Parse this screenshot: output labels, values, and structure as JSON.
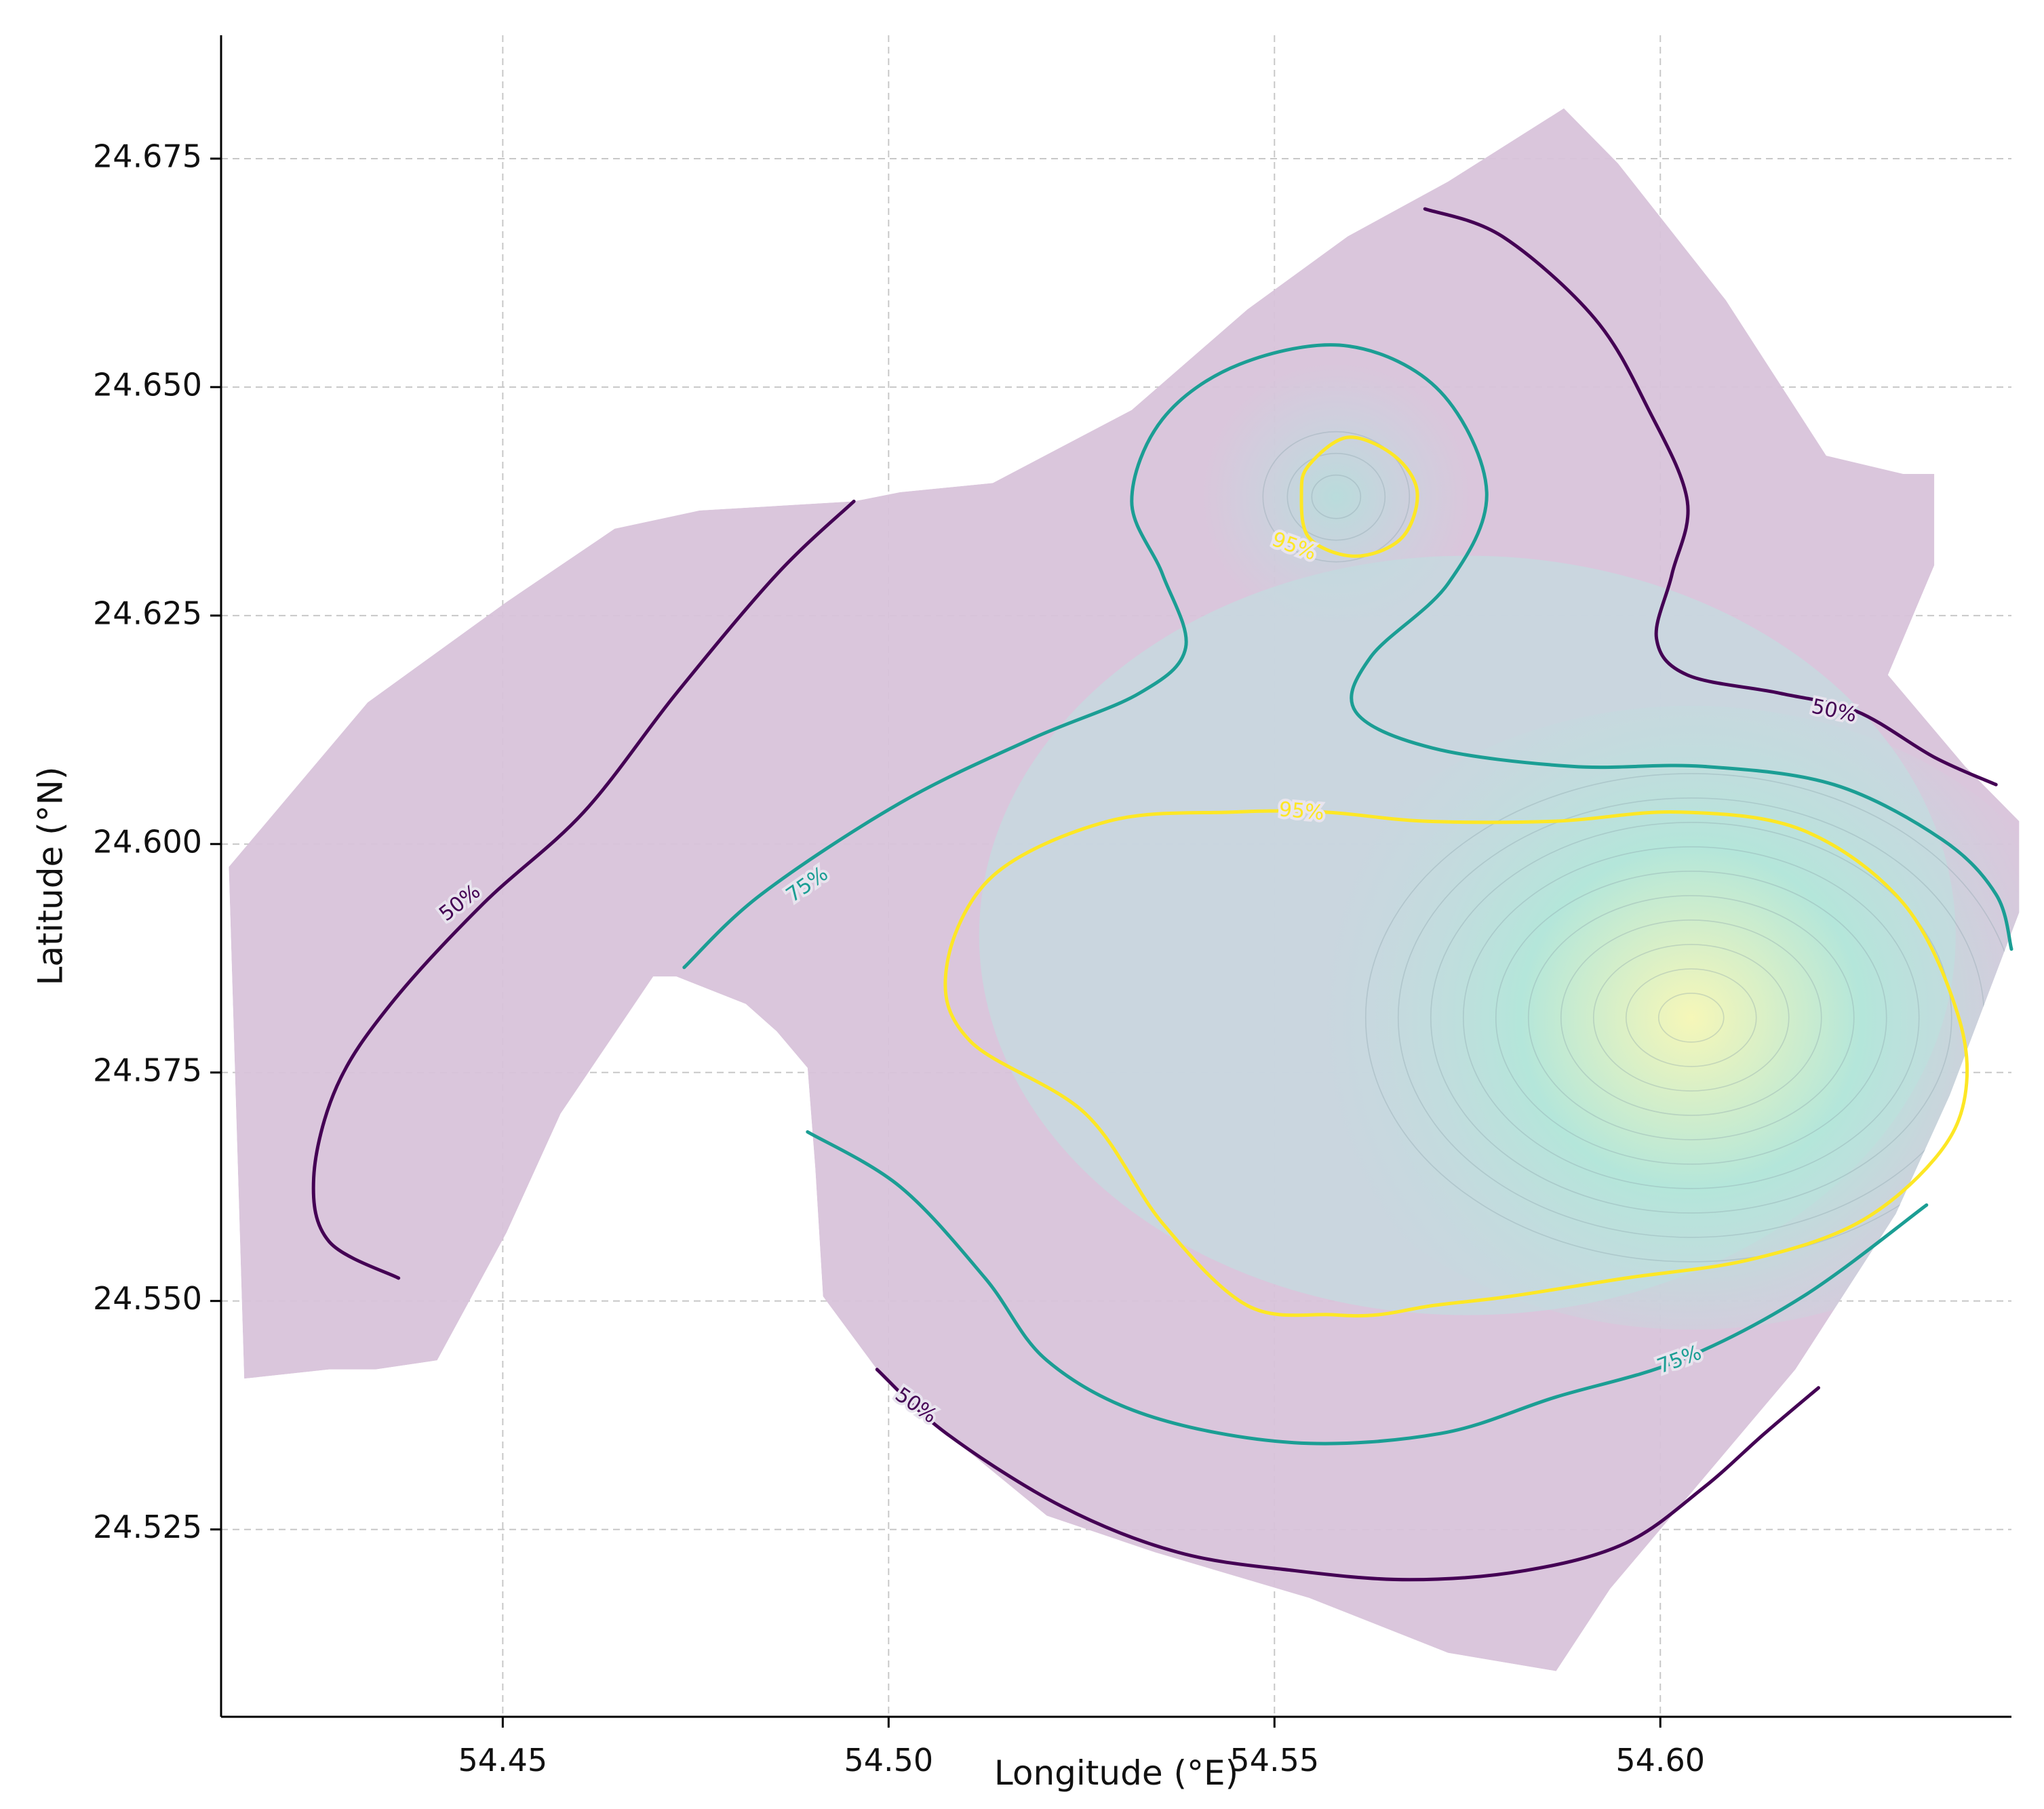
{
  "chart_data": {
    "type": "contour",
    "title": "",
    "xlabel": "Longitude (°E)",
    "ylabel": "Latitude (°N)",
    "xlim": [
      54.4135,
      54.6455
    ],
    "ylim": [
      24.5045,
      24.6885
    ],
    "xticks": [
      54.45,
      54.5,
      54.55,
      54.6
    ],
    "xtick_labels": [
      "54.45",
      "54.50",
      "54.55",
      "54.60"
    ],
    "yticks": [
      24.525,
      24.55,
      24.575,
      24.6,
      24.625,
      24.65,
      24.675
    ],
    "ytick_labels": [
      "24.525",
      "24.550",
      "24.575",
      "24.600",
      "24.625",
      "24.650",
      "24.675"
    ],
    "grid": true,
    "peaks": [
      {
        "lon": 54.604,
        "lat": 24.581,
        "relative_density": 1.0
      },
      {
        "lon": 54.558,
        "lat": 24.638,
        "relative_density": 0.5
      }
    ],
    "colors": {
      "fill_low": "#d8c3da",
      "fill_mid": "#c4dbe0",
      "fill_high": "#f6f7b8",
      "level_50": "#440154",
      "level_75": "#1b9e94",
      "level_95": "#fde725",
      "grid": "#c8c8c8",
      "axis": "#000000"
    },
    "contour_levels": [
      {
        "level": "50%",
        "label": "50%",
        "color": "#440154",
        "label_positions": [
          {
            "lon": 54.4445,
            "lat": 24.5935,
            "angle": -38
          },
          {
            "lon": 54.6225,
            "lat": 24.6145,
            "angle": 12
          },
          {
            "lon": 54.5035,
            "lat": 24.5385,
            "angle": 35
          }
        ],
        "paths": [
          [
            [
              54.4955,
              24.6375
            ],
            [
              54.4855,
              24.6295
            ],
            [
              54.4725,
              24.6165
            ],
            [
              54.4605,
              24.6035
            ],
            [
              54.4475,
              24.5935
            ],
            [
              54.4355,
              24.5825
            ],
            [
              54.4285,
              24.5735
            ],
            [
              54.4255,
              24.5635
            ],
            [
              54.4275,
              24.5565
            ],
            [
              54.4365,
              24.5525
            ]
          ],
          [
            [
              54.5695,
              24.6695
            ],
            [
              54.5795,
              24.6665
            ],
            [
              54.5915,
              24.6575
            ],
            [
              54.5985,
              24.6475
            ],
            [
              54.6035,
              24.6375
            ],
            [
              54.6015,
              24.6295
            ],
            [
              54.5995,
              24.6225
            ],
            [
              54.6035,
              24.6185
            ],
            [
              54.6155,
              24.6165
            ],
            [
              54.6255,
              24.6145
            ],
            [
              54.6355,
              24.6095
            ],
            [
              54.6435,
              24.6065
            ]
          ],
          [
            [
              54.4985,
              24.5425
            ],
            [
              54.5075,
              24.5355
            ],
            [
              54.5225,
              24.5275
            ],
            [
              54.5375,
              24.5225
            ],
            [
              54.5525,
              24.5205
            ],
            [
              54.5675,
              24.5195
            ],
            [
              54.5825,
              24.5205
            ],
            [
              54.5955,
              24.5235
            ],
            [
              54.6055,
              24.5295
            ],
            [
              54.6135,
              24.5355
            ],
            [
              54.6205,
              24.5405
            ]
          ]
        ]
      },
      {
        "level": "75%",
        "label": "75%",
        "color": "#1b9e94",
        "label_positions": [
          {
            "lon": 54.4895,
            "lat": 24.5955,
            "angle": -35
          },
          {
            "lon": 54.6025,
            "lat": 24.5435,
            "angle": -20
          }
        ],
        "paths": [
          [
            [
              54.4735,
              24.5865
            ],
            [
              54.4835,
              24.5945
            ],
            [
              54.5015,
              24.6045
            ],
            [
              54.5185,
              24.6115
            ],
            [
              54.5325,
              24.6165
            ],
            [
              54.5385,
              24.6215
            ],
            [
              54.5355,
              24.6295
            ],
            [
              54.5315,
              24.6375
            ],
            [
              54.5355,
              24.6465
            ],
            [
              54.5455,
              24.6525
            ],
            [
              54.5595,
              24.6545
            ],
            [
              54.5715,
              24.6495
            ],
            [
              54.5775,
              24.6385
            ],
            [
              54.5725,
              24.6285
            ],
            [
              54.5625,
              24.6205
            ],
            [
              54.5605,
              24.6145
            ],
            [
              54.5705,
              24.6105
            ],
            [
              54.5885,
              24.6085
            ],
            [
              54.6055,
              24.6085
            ],
            [
              54.6225,
              24.6065
            ],
            [
              54.6365,
              24.6005
            ],
            [
              54.6435,
              24.5945
            ],
            [
              54.6455,
              24.5885
            ]
          ],
          [
            [
              54.4895,
              24.5685
            ],
            [
              54.5015,
              24.5625
            ],
            [
              54.5125,
              24.5525
            ],
            [
              54.5205,
              24.5435
            ],
            [
              54.5335,
              24.5375
            ],
            [
              54.5525,
              24.5345
            ],
            [
              54.5715,
              24.5355
            ],
            [
              54.5865,
              24.5395
            ],
            [
              54.6025,
              24.5435
            ],
            [
              54.6185,
              24.5505
            ],
            [
              54.6345,
              24.5605
            ]
          ]
        ]
      },
      {
        "level": "95%",
        "label": "95%",
        "color": "#fde725",
        "label_positions": [
          {
            "lon": 54.5525,
            "lat": 24.6325,
            "angle": 20
          },
          {
            "lon": 54.5535,
            "lat": 24.6035,
            "angle": 5
          }
        ],
        "paths": [
          [
            [
              54.5535,
              24.6385
            ],
            [
              54.5545,
              24.6415
            ],
            [
              54.5595,
              24.6445
            ],
            [
              54.5655,
              24.6425
            ],
            [
              54.5685,
              24.6385
            ],
            [
              54.5665,
              24.6335
            ],
            [
              54.5605,
              24.6315
            ],
            [
              54.5545,
              24.6335
            ],
            [
              54.5535,
              24.6385
            ]
          ],
          [
            [
              54.5575,
              24.5485
            ],
            [
              54.5465,
              24.5495
            ],
            [
              54.5355,
              24.5585
            ],
            [
              54.5255,
              24.5705
            ],
            [
              54.5105,
              24.5785
            ],
            [
              54.5075,
              24.5865
            ],
            [
              54.5135,
              24.5965
            ],
            [
              54.5285,
              24.6025
            ],
            [
              54.5445,
              24.6035
            ],
            [
              54.5565,
              24.6035
            ],
            [
              54.5695,
              24.6025
            ],
            [
              54.5865,
              24.6025
            ],
            [
              54.6025,
              24.6035
            ],
            [
              54.6185,
              24.6015
            ],
            [
              54.6315,
              24.5935
            ],
            [
              54.6385,
              24.5815
            ],
            [
              54.6395,
              24.5725
            ],
            [
              54.6355,
              24.5655
            ],
            [
              54.6255,
              24.5585
            ],
            [
              54.6115,
              24.5545
            ],
            [
              54.5955,
              24.5525
            ],
            [
              54.5805,
              24.5505
            ],
            [
              54.5705,
              24.5495
            ],
            [
              54.5635,
              24.5485
            ],
            [
              54.5575,
              24.5485
            ]
          ]
        ]
      }
    ],
    "domain_polygon": [
      [
        54.4145,
        24.5975
      ],
      [
        54.4325,
        24.6155
      ],
      [
        54.4505,
        24.6265
      ],
      [
        54.4645,
        24.6345
      ],
      [
        54.4755,
        24.6365
      ],
      [
        54.4955,
        24.6375
      ],
      [
        54.5015,
        24.6385
      ],
      [
        54.5135,
        24.6395
      ],
      [
        54.5315,
        24.6475
      ],
      [
        54.5465,
        24.6585
      ],
      [
        54.5595,
        24.6665
      ],
      [
        54.5725,
        24.6725
      ],
      [
        54.5875,
        24.6805
      ],
      [
        54.5945,
        24.6745
      ],
      [
        54.6085,
        24.6595
      ],
      [
        54.6215,
        24.6425
      ],
      [
        54.6315,
        24.6405
      ],
      [
        54.6355,
        24.6405
      ],
      [
        54.6355,
        24.6305
      ],
      [
        54.6295,
        24.6185
      ],
      [
        54.6395,
        24.6085
      ],
      [
        54.6465,
        24.6025
      ],
      [
        54.6465,
        24.5925
      ],
      [
        54.6375,
        24.5725
      ],
      [
        54.6305,
        24.5595
      ],
      [
        54.6175,
        24.5425
      ],
      [
        54.6035,
        24.5285
      ],
      [
        54.5935,
        24.5185
      ],
      [
        54.5865,
        24.5095
      ],
      [
        54.5725,
        24.5115
      ],
      [
        54.5545,
        24.5175
      ],
      [
        54.5345,
        24.5225
      ],
      [
        54.5205,
        24.5265
      ],
      [
        54.5075,
        24.5355
      ],
      [
        54.4985,
        24.5425
      ],
      [
        54.4915,
        24.5505
      ],
      [
        54.4905,
        24.5645
      ],
      [
        54.4895,
        24.5755
      ],
      [
        54.4855,
        24.5795
      ],
      [
        54.4815,
        24.5825
      ],
      [
        54.4725,
        24.5855
      ],
      [
        54.4695,
        24.5855
      ],
      [
        54.4575,
        24.5705
      ],
      [
        54.4505,
        24.5575
      ],
      [
        54.4415,
        24.5435
      ],
      [
        54.4335,
        24.5425
      ],
      [
        54.4275,
        24.5425
      ],
      [
        54.4165,
        24.5415
      ],
      [
        54.4145,
        24.5975
      ]
    ]
  }
}
